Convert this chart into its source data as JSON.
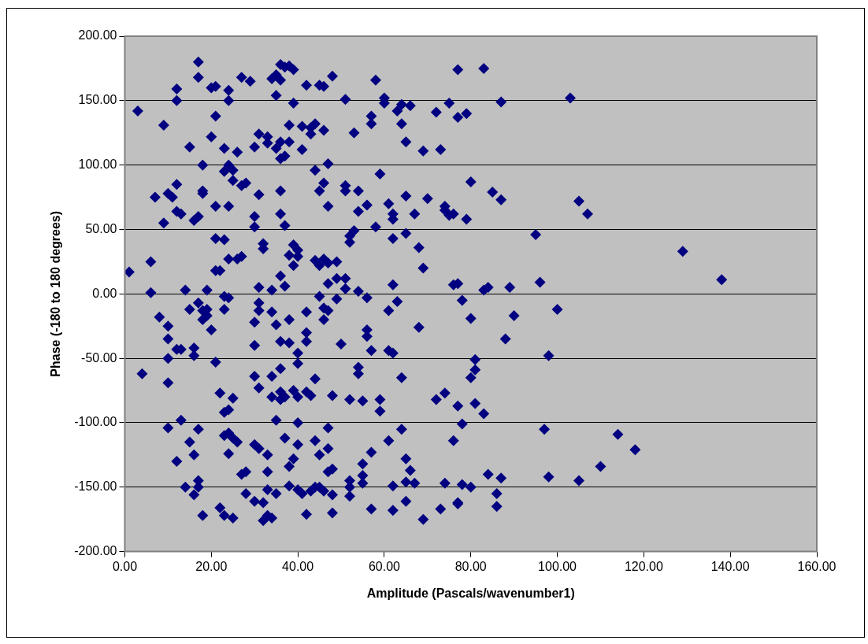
{
  "chart_data": {
    "type": "scatter",
    "xlabel": "Amplitude (Pascals/wavenumber1)",
    "ylabel": "Phase (-180 to 180 degrees)",
    "xlim": [
      0,
      160
    ],
    "ylim": [
      -200,
      200
    ],
    "xticks": [
      {
        "value": 0,
        "label": "0.00"
      },
      {
        "value": 20,
        "label": "20.00"
      },
      {
        "value": 40,
        "label": "40.00"
      },
      {
        "value": 60,
        "label": "60.00"
      },
      {
        "value": 80,
        "label": "80.00"
      },
      {
        "value": 100,
        "label": "100.00"
      },
      {
        "value": 120,
        "label": "120.00"
      },
      {
        "value": 140,
        "label": "140.00"
      },
      {
        "value": 160,
        "label": "160.00"
      }
    ],
    "yticks": [
      {
        "value": -200,
        "label": "-200.00"
      },
      {
        "value": -150,
        "label": "-150.00"
      },
      {
        "value": -100,
        "label": "-100.00"
      },
      {
        "value": -50,
        "label": "-50.00"
      },
      {
        "value": 0,
        "label": "0.00"
      },
      {
        "value": 50,
        "label": "50.00"
      },
      {
        "value": 100,
        "label": "100.00"
      },
      {
        "value": 150,
        "label": "150.00"
      },
      {
        "value": 200,
        "label": "200.00"
      }
    ],
    "grid": "y",
    "legend": false,
    "marker": "diamond",
    "series": [
      {
        "color": "#000080",
        "x": [
          1,
          3,
          4,
          6,
          6,
          7,
          8,
          9,
          9,
          10,
          10,
          10,
          10,
          10,
          10,
          11,
          12,
          12,
          12,
          12,
          12,
          12,
          13,
          13,
          13,
          14,
          14,
          15,
          15,
          15,
          16,
          16,
          16,
          16,
          16,
          17,
          17,
          17,
          17,
          17,
          17,
          17,
          18,
          18,
          18,
          18,
          18,
          18,
          19,
          19,
          19,
          20,
          20,
          20,
          21,
          21,
          21,
          21,
          21,
          21,
          22,
          22,
          22,
          23,
          23,
          23,
          23,
          23,
          23,
          23,
          23,
          24,
          24,
          24,
          24,
          24,
          24,
          24,
          24,
          24,
          25,
          25,
          25,
          25,
          25,
          26,
          26,
          26,
          27,
          27,
          27,
          27,
          28,
          28,
          28,
          29,
          30,
          30,
          30,
          30,
          30,
          30,
          30,
          30,
          31,
          31,
          31,
          31,
          31,
          31,
          31,
          32,
          32,
          32,
          32,
          33,
          33,
          33,
          33,
          33,
          33,
          34,
          34,
          34,
          34,
          34,
          34,
          35,
          35,
          35,
          35,
          35,
          35,
          36,
          36,
          36,
          36,
          36,
          36,
          36,
          36,
          36,
          36,
          36,
          37,
          37,
          37,
          37,
          37,
          37,
          38,
          38,
          38,
          38,
          38,
          38,
          38,
          38,
          39,
          39,
          39,
          39,
          39,
          39,
          40,
          40,
          40,
          40,
          40,
          40,
          40,
          40,
          41,
          41,
          41,
          42,
          42,
          42,
          42,
          42,
          42,
          43,
          43,
          43,
          43,
          44,
          44,
          44,
          44,
          44,
          44,
          45,
          45,
          45,
          45,
          45,
          45,
          46,
          46,
          46,
          46,
          46,
          46,
          46,
          47,
          47,
          47,
          47,
          47,
          47,
          47,
          47,
          48,
          48,
          48,
          48,
          48,
          49,
          49,
          49,
          50,
          51,
          51,
          51,
          51,
          51,
          52,
          52,
          52,
          52,
          52,
          52,
          53,
          53,
          54,
          54,
          54,
          54,
          54,
          55,
          55,
          55,
          55,
          56,
          56,
          56,
          56,
          57,
          57,
          57,
          57,
          57,
          58,
          58,
          59,
          59,
          59,
          60,
          60,
          61,
          61,
          61,
          61,
          62,
          62,
          62,
          62,
          62,
          62,
          62,
          63,
          63,
          64,
          64,
          64,
          64,
          65,
          65,
          65,
          65,
          65,
          65,
          66,
          66,
          67,
          67,
          68,
          68,
          69,
          69,
          69,
          70,
          72,
          72,
          73,
          73,
          74,
          74,
          74,
          74,
          75,
          75,
          76,
          76,
          76,
          77,
          77,
          77,
          77,
          77,
          77,
          78,
          78,
          78,
          79,
          79,
          80,
          80,
          80,
          80,
          81,
          81,
          81,
          83,
          83,
          83,
          84,
          84,
          85,
          86,
          86,
          87,
          87,
          87,
          88,
          89,
          90,
          95,
          96,
          97,
          98,
          98,
          100,
          103,
          105,
          105,
          107,
          110,
          114,
          118,
          129,
          138
        ],
        "values": [
          17,
          142,
          -62,
          25,
          1,
          75,
          -18,
          55,
          131,
          78,
          -69,
          -50,
          -25,
          -35,
          -104,
          75,
          150,
          159,
          85,
          64,
          -43,
          -130,
          62,
          -43,
          -98,
          3,
          -150,
          114,
          -12,
          -115,
          -48,
          -42,
          -125,
          -156,
          57,
          60,
          -105,
          -145,
          -150,
          180,
          168,
          -7,
          80,
          78,
          100,
          -13,
          -20,
          -172,
          -17,
          3,
          -12,
          -28,
          122,
          160,
          68,
          -53,
          161,
          43,
          138,
          18,
          -77,
          18,
          -166,
          113,
          42,
          -2,
          -12,
          -92,
          -110,
          -172,
          95,
          -124,
          27,
          68,
          100,
          -3,
          150,
          158,
          -108,
          -90,
          96,
          -81,
          -112,
          -174,
          88,
          27,
          110,
          -115,
          -140,
          29,
          168,
          84,
          86,
          -138,
          -155,
          165,
          60,
          52,
          -22,
          -40,
          -64,
          114,
          -117,
          -161,
          124,
          77,
          5,
          -7,
          -13,
          -73,
          -120,
          35,
          39,
          -176,
          -162,
          122,
          -125,
          -138,
          -152,
          -172,
          117,
          167,
          -14,
          -64,
          -80,
          -174,
          3,
          154,
          113,
          -24,
          -98,
          -155,
          170,
          105,
          80,
          62,
          14,
          -37,
          -58,
          -76,
          -82,
          118,
          166,
          178,
          176,
          107,
          53,
          6,
          -112,
          -80,
          131,
          118,
          30,
          -20,
          -38,
          -134,
          -149,
          177,
          148,
          38,
          22,
          -75,
          -128,
          174,
          -100,
          -117,
          -54,
          -46,
          -80,
          -152,
          34,
          29,
          130,
          112,
          -155,
          -14,
          -37,
          -30,
          -76,
          -171,
          162,
          129,
          124,
          -79,
          -153,
          26,
          132,
          96,
          -66,
          -150,
          -114,
          22,
          162,
          80,
          -2,
          -150,
          -125,
          -11,
          -20,
          27,
          86,
          161,
          127,
          -153,
          24,
          68,
          101,
          8,
          -13,
          -104,
          -120,
          -138,
          169,
          -136,
          -156,
          -79,
          -170,
          25,
          12,
          -4,
          -39,
          4,
          84,
          80,
          12,
          151,
          45,
          -82,
          -150,
          -157,
          -145,
          40,
          49,
          125,
          80,
          64,
          2,
          -57,
          -62,
          -132,
          -141,
          -147,
          -83,
          69,
          -28,
          -3,
          -33,
          132,
          138,
          -44,
          -123,
          -167,
          166,
          52,
          93,
          -82,
          -91,
          148,
          152,
          70,
          -13,
          -44,
          -114,
          58,
          62,
          43,
          7,
          -46,
          -149,
          -168,
          -6,
          142,
          -65,
          -105,
          147,
          132,
          47,
          118,
          76,
          -146,
          -161,
          -128,
          146,
          -137,
          62,
          -147,
          36,
          -26,
          -175,
          111,
          20,
          74,
          141,
          -82,
          -167,
          112,
          68,
          65,
          -77,
          -147,
          61,
          148,
          -114,
          62,
          7,
          8,
          -162,
          -163,
          137,
          174,
          -87,
          -101,
          -5,
          -148,
          140,
          58,
          -65,
          -150,
          87,
          -19,
          -51,
          -59,
          -85,
          -93,
          175,
          3,
          5,
          -140,
          79,
          -155,
          -165,
          149,
          73,
          -143,
          -35,
          5,
          -17,
          46,
          9,
          -105,
          -142,
          -48,
          -12,
          152,
          72,
          -145,
          62,
          -134,
          -109,
          -121,
          33,
          11
        ]
      }
    ]
  }
}
